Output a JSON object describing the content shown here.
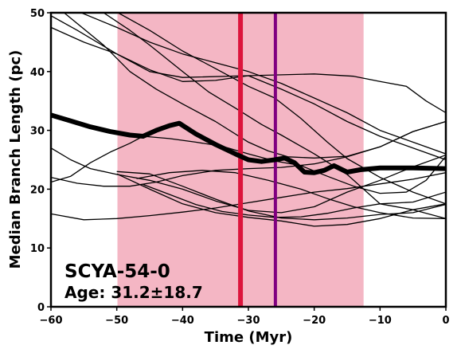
{
  "chart_data": {
    "type": "line",
    "xlabel": "Time (Myr)",
    "ylabel": "Median Branch Length (pc)",
    "xlim": [
      -60,
      0
    ],
    "ylim": [
      0,
      50
    ],
    "xticks": [
      -60,
      -50,
      -40,
      -30,
      -20,
      -10,
      0
    ],
    "yticks": [
      0,
      10,
      20,
      30,
      40,
      50
    ],
    "grid": false,
    "annotation": {
      "title": "SCYA-54-0",
      "subtitle": "Age: 31.2±18.7"
    },
    "shaded_band": {
      "x0": -49.9,
      "x1": -12.5,
      "color": "#f4b6c4"
    },
    "vertical_lines": [
      {
        "x": -31.2,
        "color": "#dc143c"
      },
      {
        "x": -25.9,
        "color": "#800080"
      }
    ],
    "main_series": {
      "color": "#000000",
      "points": [
        [
          -60,
          32.6
        ],
        [
          -57,
          31.6
        ],
        [
          -54,
          30.6
        ],
        [
          -51,
          29.8
        ],
        [
          -48,
          29.2
        ],
        [
          -46,
          29.0
        ],
        [
          -44,
          30.0
        ],
        [
          -42,
          30.8
        ],
        [
          -40.5,
          31.2
        ],
        [
          -38,
          29.4
        ],
        [
          -35,
          27.6
        ],
        [
          -32,
          26.0
        ],
        [
          -30,
          25.0
        ],
        [
          -28,
          24.7
        ],
        [
          -26,
          25.0
        ],
        [
          -24.5,
          25.3
        ],
        [
          -23,
          24.5
        ],
        [
          -21.5,
          22.9
        ],
        [
          -20,
          22.8
        ],
        [
          -18.5,
          23.2
        ],
        [
          -17,
          24.0
        ],
        [
          -15,
          22.9
        ],
        [
          -13,
          23.3
        ],
        [
          -10,
          23.6
        ],
        [
          -5,
          23.6
        ],
        [
          0,
          23.5
        ]
      ]
    },
    "series": [
      {
        "points": [
          [
            -60,
            49.5
          ],
          [
            -56,
            47
          ],
          [
            -50,
            43
          ],
          [
            -45,
            40
          ],
          [
            -40,
            39
          ],
          [
            -30,
            39.3
          ],
          [
            -20,
            39.6
          ],
          [
            -14,
            39.2
          ],
          [
            -10,
            38.3
          ],
          [
            -6,
            37.5
          ],
          [
            -3,
            35
          ],
          [
            0,
            33
          ]
        ]
      },
      {
        "points": [
          [
            -55.4,
            50
          ],
          [
            -50,
            47.5
          ],
          [
            -45,
            45
          ],
          [
            -40,
            43
          ],
          [
            -35,
            41.5
          ],
          [
            -30,
            40
          ],
          [
            -25,
            38
          ],
          [
            -20,
            35.5
          ],
          [
            -15,
            33
          ],
          [
            -10,
            30
          ],
          [
            -5,
            28
          ],
          [
            0,
            26
          ]
        ]
      },
      {
        "points": [
          [
            -60,
            47.5
          ],
          [
            -55,
            45
          ],
          [
            -50,
            43
          ],
          [
            -45,
            40.3
          ],
          [
            -40,
            38.3
          ],
          [
            -35,
            38.5
          ],
          [
            -30,
            39.3
          ],
          [
            -25,
            37
          ],
          [
            -20,
            34.5
          ],
          [
            -15,
            31.5
          ],
          [
            -10,
            29
          ],
          [
            -5,
            27
          ],
          [
            0,
            25
          ]
        ]
      },
      {
        "points": [
          [
            -52,
            50
          ],
          [
            -48,
            47
          ],
          [
            -45,
            44.5
          ],
          [
            -40,
            40
          ],
          [
            -36,
            36.5
          ],
          [
            -32,
            33.8
          ],
          [
            -28,
            31
          ],
          [
            -25,
            29.2
          ],
          [
            -20,
            26
          ],
          [
            -15,
            22.5
          ],
          [
            -10,
            17.5
          ],
          [
            -5,
            16.5
          ],
          [
            0,
            15
          ]
        ]
      },
      {
        "points": [
          [
            -58,
            50
          ],
          [
            -52,
            44.5
          ],
          [
            -48,
            40
          ],
          [
            -44,
            37
          ],
          [
            -40,
            34.5
          ],
          [
            -35,
            31.5
          ],
          [
            -30,
            28
          ],
          [
            -27,
            26.5
          ],
          [
            -24,
            25.5
          ],
          [
            -20,
            25.3
          ],
          [
            -15,
            25.6
          ],
          [
            -10,
            27.2
          ],
          [
            -5,
            29.8
          ],
          [
            0,
            31.5
          ]
        ]
      },
      {
        "points": [
          [
            -49.8,
            50
          ],
          [
            -45,
            47
          ],
          [
            -40,
            43.5
          ],
          [
            -35,
            40.5
          ],
          [
            -30,
            37.5
          ],
          [
            -26,
            35.5
          ],
          [
            -22,
            32
          ],
          [
            -18,
            28
          ],
          [
            -15,
            25.2
          ],
          [
            -10,
            22
          ],
          [
            -5,
            19.5
          ],
          [
            0,
            17.5
          ]
        ]
      },
      {
        "points": [
          [
            -60,
            27
          ],
          [
            -57,
            25
          ],
          [
            -54,
            23.5
          ],
          [
            -50,
            22.5
          ],
          [
            -45,
            21.5
          ],
          [
            -40,
            20
          ],
          [
            -35,
            18
          ],
          [
            -30,
            16.4
          ],
          [
            -25,
            16
          ],
          [
            -20,
            17
          ],
          [
            -15,
            19.5
          ],
          [
            -10,
            21.5
          ],
          [
            -5,
            23.8
          ],
          [
            0,
            25.8
          ]
        ]
      },
      {
        "points": [
          [
            -60,
            22
          ],
          [
            -56,
            21
          ],
          [
            -52,
            20.5
          ],
          [
            -48,
            20.5
          ],
          [
            -44,
            21.2
          ],
          [
            -40,
            22.3
          ],
          [
            -35,
            23.2
          ],
          [
            -30,
            23.5
          ],
          [
            -25,
            23.7
          ],
          [
            -20,
            24.3
          ],
          [
            -15,
            25.5
          ],
          [
            -10,
            27.2
          ],
          [
            -5,
            29.8
          ],
          [
            0,
            31.5
          ]
        ]
      },
      {
        "points": [
          [
            -60,
            21.2
          ],
          [
            -57,
            22.2
          ],
          [
            -54,
            24.5
          ],
          [
            -51,
            26.3
          ],
          [
            -48,
            27.8
          ],
          [
            -46,
            29.0
          ],
          [
            -42,
            28.6
          ],
          [
            -38,
            28.0
          ],
          [
            -34,
            27.3
          ],
          [
            -30,
            26.0
          ],
          [
            -26,
            24.8
          ],
          [
            -22,
            24.0
          ],
          [
            -18,
            22.2
          ],
          [
            -14,
            20.5
          ],
          [
            -10,
            19.3
          ],
          [
            -6,
            19.5
          ],
          [
            -3,
            21.5
          ],
          [
            0,
            25.6
          ]
        ]
      },
      {
        "points": [
          [
            -60,
            15.8
          ],
          [
            -55,
            14.8
          ],
          [
            -50,
            15.0
          ],
          [
            -45,
            15.5
          ],
          [
            -40,
            16.1
          ],
          [
            -35,
            16.8
          ],
          [
            -30,
            17.7
          ],
          [
            -25,
            18.6
          ],
          [
            -20,
            19.5
          ],
          [
            -15,
            20.1
          ],
          [
            -10,
            20.9
          ],
          [
            -5,
            21.7
          ],
          [
            0,
            22.8
          ]
        ]
      },
      {
        "points": [
          [
            -50,
            23.0
          ],
          [
            -45,
            22.6
          ],
          [
            -40,
            20.5
          ],
          [
            -35,
            18.3
          ],
          [
            -30,
            16.3
          ],
          [
            -25,
            15.1
          ],
          [
            -20,
            14.8
          ],
          [
            -15,
            15.1
          ],
          [
            -10,
            15.7
          ],
          [
            -5,
            16.0
          ],
          [
            0,
            17.4
          ]
        ]
      },
      {
        "points": [
          [
            -46,
            20.8
          ],
          [
            -42,
            19.1
          ],
          [
            -38,
            17.4
          ],
          [
            -34,
            16.2
          ],
          [
            -30,
            15.6
          ],
          [
            -26,
            15.2
          ],
          [
            -22,
            15.3
          ],
          [
            -18,
            15.9
          ],
          [
            -14,
            16.8
          ],
          [
            -10,
            17.5
          ],
          [
            -5,
            17.8
          ],
          [
            0,
            19.5
          ]
        ]
      },
      {
        "points": [
          [
            -50,
            22.6
          ],
          [
            -45,
            20
          ],
          [
            -40,
            17.5
          ],
          [
            -35,
            16
          ],
          [
            -30,
            15.2
          ],
          [
            -25,
            14.6
          ],
          [
            -20,
            13.7
          ],
          [
            -15,
            14.0
          ],
          [
            -10,
            15.0
          ],
          [
            -5,
            16.5
          ],
          [
            0,
            17.5
          ]
        ]
      },
      {
        "points": [
          [
            -47,
            21.8
          ],
          [
            -42,
            22.8
          ],
          [
            -37,
            23.2
          ],
          [
            -32,
            22.8
          ],
          [
            -27,
            21.5
          ],
          [
            -22,
            20.0
          ],
          [
            -18,
            18.4
          ],
          [
            -14,
            17.0
          ],
          [
            -10,
            16.0
          ],
          [
            -5,
            15.1
          ],
          [
            0,
            15.0
          ]
        ]
      }
    ]
  }
}
